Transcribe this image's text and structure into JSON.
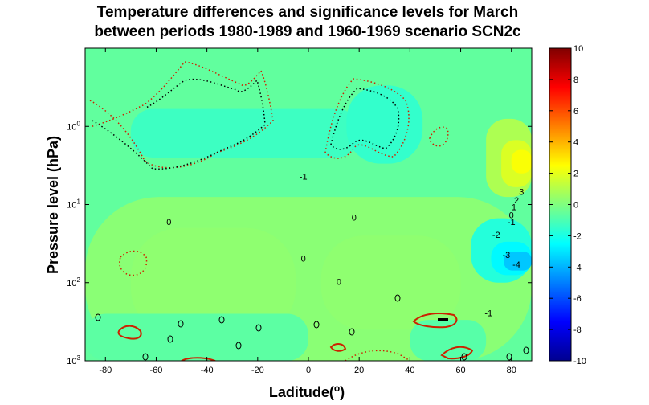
{
  "chart_data": {
    "type": "heatmap",
    "title_lines": [
      "Temperature differences and significance levels for March",
      "between periods 1980-1989 and 1960-1969 scenario SCN2c"
    ],
    "xlabel": "Laditude(",
    "xlabel_sup": "o",
    "xlabel_end": ")",
    "ylabel": "Pressure level (hPa)",
    "xlim": [
      -88,
      88
    ],
    "x_ticks": [
      "-80",
      "-60",
      "-40",
      "-20",
      "0",
      "20",
      "40",
      "60",
      "80"
    ],
    "x_tick_values": [
      -80,
      -60,
      -40,
      -20,
      0,
      20,
      40,
      60,
      80
    ],
    "y_scale": "log",
    "y_reversed": true,
    "ylim": [
      0.1,
      1000
    ],
    "y_ticks": [
      {
        "base": "10",
        "exp": "0",
        "value": 1
      },
      {
        "base": "10",
        "exp": "1",
        "value": 10
      },
      {
        "base": "10",
        "exp": "2",
        "value": 100
      },
      {
        "base": "10",
        "exp": "3",
        "value": 1000
      }
    ],
    "colorbar": {
      "range": [
        -10,
        10
      ],
      "ticks": [
        "10",
        "8",
        "6",
        "4",
        "2",
        "0",
        "-2",
        "-4",
        "-6",
        "-8",
        "-10"
      ],
      "tick_values": [
        10,
        8,
        6,
        4,
        2,
        0,
        -2,
        -4,
        -6,
        -8,
        -10
      ],
      "colormap": "jet"
    },
    "background_value": -0.6,
    "regions": [
      {
        "value": 0.2,
        "lat": [
          -88,
          88
        ],
        "p": [
          8,
          1000
        ]
      },
      {
        "value": 0.3,
        "lat": [
          -70,
          -5
        ],
        "p": [
          20,
          500
        ]
      },
      {
        "value": 0.3,
        "lat": [
          5,
          60
        ],
        "p": [
          25,
          400
        ]
      },
      {
        "value": -0.7,
        "lat": [
          -88,
          0
        ],
        "p": [
          250,
          1000
        ]
      },
      {
        "value": -0.8,
        "lat": [
          40,
          70
        ],
        "p": [
          300,
          1000
        ]
      },
      {
        "value": -1.3,
        "lat": [
          -70,
          20
        ],
        "p": [
          0.6,
          2.5
        ]
      },
      {
        "value": -1.5,
        "lat": [
          15,
          45
        ],
        "p": [
          0.3,
          3
        ]
      },
      {
        "value": -1.8,
        "lat": [
          64,
          88
        ],
        "p": [
          15,
          100
        ]
      },
      {
        "value": -2.6,
        "lat": [
          72,
          88
        ],
        "p": [
          30,
          80
        ]
      },
      {
        "value": -3.6,
        "lat": [
          77,
          88
        ],
        "p": [
          40,
          70
        ]
      },
      {
        "value": 0.9,
        "lat": [
          70,
          88
        ],
        "p": [
          0.8,
          8
        ]
      },
      {
        "value": 1.8,
        "lat": [
          76,
          88
        ],
        "p": [
          1.5,
          6
        ]
      },
      {
        "value": 2.4,
        "lat": [
          80,
          88
        ],
        "p": [
          2,
          4
        ]
      }
    ],
    "contour_labels": [
      {
        "text": "-1",
        "lat": -2,
        "p": 4.5
      },
      {
        "text": "3",
        "lat": 84,
        "p": 7
      },
      {
        "text": "2",
        "lat": 82,
        "p": 9
      },
      {
        "text": "1",
        "lat": 81,
        "p": 11
      },
      {
        "text": "0",
        "lat": 80,
        "p": 14
      },
      {
        "text": "-1",
        "lat": 80,
        "p": 17
      },
      {
        "text": "-2",
        "lat": 74,
        "p": 25
      },
      {
        "text": "-3",
        "lat": 78,
        "p": 45
      },
      {
        "text": "-4",
        "lat": 82,
        "p": 60
      },
      {
        "text": "0",
        "lat": -55,
        "p": 17
      },
      {
        "text": "0",
        "lat": 18,
        "p": 15
      },
      {
        "text": "0",
        "lat": -2,
        "p": 50
      },
      {
        "text": "0",
        "lat": 12,
        "p": 100
      },
      {
        "text": "-1",
        "lat": 71,
        "p": 250
      }
    ]
  }
}
